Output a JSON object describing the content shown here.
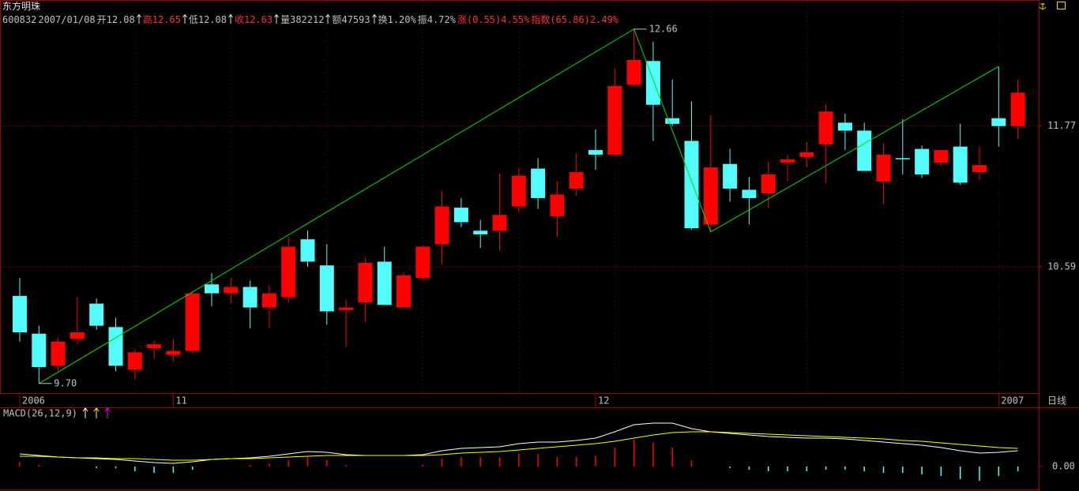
{
  "header": {
    "title": "东方明珠",
    "info": [
      {
        "text": "600832",
        "color": "#c0c0c0"
      },
      {
        "text": "2007/01/08",
        "color": "#c0c0c0"
      },
      {
        "text": "开12.08",
        "color": "#c0c0c0",
        "arrow": true
      },
      {
        "text": "高12.65",
        "color": "#ff3030",
        "arrow": true
      },
      {
        "text": "低12.08",
        "color": "#c0c0c0",
        "arrow": true
      },
      {
        "text": "收12.63",
        "color": "#ff3030",
        "arrow": true
      },
      {
        "text": "量382212",
        "color": "#c0c0c0",
        "arrow": true
      },
      {
        "text": "额47593",
        "color": "#c0c0c0",
        "arrow": true
      },
      {
        "text": "换1.20%",
        "color": "#c0c0c0"
      },
      {
        "text": "振4.72%",
        "color": "#c0c0c0"
      },
      {
        "text": "涨(0.55)4.55%",
        "color": "#ff3030"
      },
      {
        "text": "指数(65.86)2.49%",
        "color": "#ff3030"
      }
    ]
  },
  "chart_data": [
    {
      "type": "candlestick",
      "categories": [
        "2006",
        null,
        null,
        null,
        null,
        null,
        null,
        null,
        "11",
        null,
        null,
        null,
        null,
        null,
        null,
        null,
        null,
        null,
        null,
        null,
        null,
        null,
        null,
        null,
        null,
        null,
        null,
        null,
        null,
        null,
        "12",
        null,
        null,
        null,
        null,
        null,
        null,
        null,
        null,
        null,
        null,
        null,
        null,
        null,
        null,
        null,
        null,
        null,
        null,
        null,
        null,
        "2007",
        null
      ],
      "open": [
        10.36,
        10.07,
        9.83,
        10.03,
        10.3,
        10.12,
        9.8,
        9.96,
        9.91,
        9.94,
        10.45,
        10.38,
        10.43,
        10.27,
        10.35,
        10.81,
        10.6,
        10.25,
        10.31,
        10.63,
        10.27,
        10.5,
        10.77,
        11.07,
        10.88,
        10.88,
        11.08,
        11.4,
        11.0,
        11.23,
        11.56,
        11.52,
        12.14,
        12.36,
        11.84,
        11.64,
        10.93,
        11.44,
        11.22,
        11.19,
        11.45,
        11.5,
        11.61,
        11.8,
        11.73,
        11.29,
        11.49,
        11.57,
        11.45,
        11.59,
        11.37,
        11.84,
        11.77
      ],
      "high": [
        10.5,
        10.13,
        10.04,
        10.35,
        10.34,
        10.19,
        9.95,
        10.02,
        10.03,
        10.39,
        10.54,
        10.5,
        10.48,
        10.44,
        10.83,
        10.88,
        10.77,
        10.33,
        10.66,
        10.75,
        10.55,
        10.76,
        11.21,
        11.15,
        10.97,
        11.36,
        11.4,
        11.49,
        11.29,
        11.53,
        11.74,
        12.29,
        12.66,
        12.54,
        12.19,
        11.99,
        11.87,
        11.57,
        11.33,
        11.46,
        11.52,
        11.63,
        11.97,
        11.88,
        11.8,
        11.62,
        11.83,
        11.6,
        11.56,
        11.79,
        11.59,
        12.31,
        12.19
      ],
      "low": [
        10.01,
        9.7,
        9.79,
        9.99,
        10.1,
        9.79,
        9.73,
        9.88,
        9.86,
        9.92,
        10.28,
        10.3,
        10.11,
        10.11,
        10.31,
        10.59,
        10.14,
        9.97,
        10.16,
        10.29,
        10.27,
        10.48,
        10.61,
        10.91,
        10.74,
        10.72,
        11.03,
        11.06,
        10.83,
        11.17,
        11.39,
        11.52,
        12.13,
        11.64,
        11.77,
        10.89,
        10.87,
        11.12,
        10.93,
        11.07,
        11.29,
        11.41,
        11.28,
        11.56,
        11.38,
        11.1,
        11.35,
        11.32,
        11.42,
        11.26,
        11.3,
        11.59,
        11.66
      ],
      "close": [
        10.08,
        9.82,
        10.01,
        10.08,
        10.13,
        9.83,
        9.93,
        9.99,
        9.94,
        10.38,
        10.38,
        10.43,
        10.27,
        10.38,
        10.75,
        10.63,
        10.24,
        10.27,
        10.62,
        10.29,
        10.52,
        10.75,
        11.08,
        10.95,
        10.85,
        11.01,
        11.34,
        11.15,
        11.18,
        11.37,
        11.52,
        12.13,
        12.37,
        11.96,
        11.79,
        10.9,
        11.41,
        11.23,
        11.15,
        11.35,
        11.48,
        11.54,
        11.9,
        11.73,
        11.38,
        11.52,
        11.48,
        11.35,
        11.56,
        11.28,
        11.43,
        11.77,
        12.07
      ],
      "up_color": "#ff0000",
      "down_color": "#54fcfc",
      "ylim": [
        9.63,
        12.94
      ],
      "log_scale": true,
      "yticks": [
        10.59,
        11.77
      ],
      "grid": true,
      "annotations": [
        {
          "value": 9.7,
          "label": "9.70"
        },
        {
          "value": 12.66,
          "label": "12.66"
        }
      ],
      "trend_color": "#00e000",
      "period_label": "日线"
    },
    {
      "type": "macd",
      "title": "MACD(26,12,9)",
      "series": [
        {
          "color": "#ffffff",
          "values": [
            0.064,
            0.056,
            0.048,
            0.044,
            0.04,
            0.036,
            0.028,
            0.02,
            0.016,
            0.024,
            0.036,
            0.04,
            0.044,
            0.052,
            0.064,
            0.076,
            0.072,
            0.06,
            0.056,
            0.056,
            0.056,
            0.06,
            0.08,
            0.092,
            0.096,
            0.1,
            0.116,
            0.124,
            0.124,
            0.132,
            0.144,
            0.176,
            0.212,
            0.22,
            0.22,
            0.192,
            0.176,
            0.168,
            0.16,
            0.152,
            0.148,
            0.144,
            0.144,
            0.14,
            0.132,
            0.124,
            0.116,
            0.108,
            0.096,
            0.08,
            0.068,
            0.072,
            0.08
          ]
        },
        {
          "color": "#ffff00",
          "values": [
            0.052,
            0.052,
            0.048,
            0.044,
            0.044,
            0.04,
            0.04,
            0.036,
            0.032,
            0.032,
            0.036,
            0.04,
            0.04,
            0.044,
            0.048,
            0.052,
            0.056,
            0.056,
            0.056,
            0.056,
            0.056,
            0.056,
            0.06,
            0.068,
            0.072,
            0.076,
            0.084,
            0.092,
            0.1,
            0.108,
            0.116,
            0.128,
            0.144,
            0.16,
            0.172,
            0.176,
            0.176,
            0.172,
            0.168,
            0.164,
            0.16,
            0.156,
            0.152,
            0.148,
            0.144,
            0.14,
            0.132,
            0.128,
            0.12,
            0.112,
            0.104,
            0.096,
            0.092
          ]
        }
      ],
      "bars": [
        0.024,
        0.008,
        0,
        0,
        -0.008,
        -0.008,
        -0.024,
        -0.032,
        -0.032,
        -0.016,
        0,
        0,
        0.008,
        0.016,
        0.032,
        0.048,
        0.032,
        0.008,
        0,
        0,
        0,
        0.008,
        0.04,
        0.048,
        0.048,
        0.048,
        0.064,
        0.064,
        0.048,
        0.048,
        0.056,
        0.096,
        0.136,
        0.12,
        0.096,
        0.032,
        0,
        -0.008,
        -0.016,
        -0.024,
        -0.024,
        -0.024,
        -0.016,
        -0.016,
        -0.024,
        -0.032,
        -0.032,
        -0.04,
        -0.048,
        -0.064,
        -0.072,
        -0.048,
        -0.024
      ],
      "up_color": "#ff0000",
      "down_color": "#54fcfc",
      "ylim": [
        -0.124,
        0.296
      ],
      "yticks": [
        {
          "value": 0,
          "label": "0.00"
        }
      ]
    }
  ]
}
